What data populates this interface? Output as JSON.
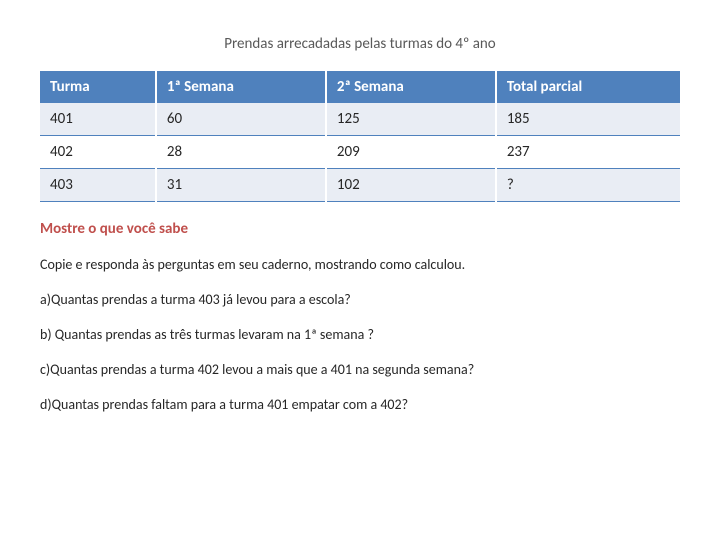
{
  "title": "Prendas arrecadadas pelas turmas do 4º ano",
  "table": {
    "header_bg": "#4f81bd",
    "header_color": "#ffffff",
    "row_alt_bg": "#e9edf4",
    "border_color": "#4f81bd",
    "columns": [
      "Turma",
      "1ª Semana",
      "2ª Semana",
      "Total parcial"
    ],
    "rows": [
      [
        "401",
        "60",
        "125",
        "185"
      ],
      [
        "402",
        "28",
        "209",
        "237"
      ],
      [
        "403",
        "31",
        "102",
        "?"
      ]
    ]
  },
  "subtitle": "Mostre o que você sabe",
  "instruction": "Copie e responda às perguntas  em seu caderno, mostrando como calculou.",
  "questions": [
    "a)Quantas prendas a turma 403 já levou para a escola?",
    "b) Quantas prendas as três turmas levaram na 1ª semana ?",
    "c)Quantas prendas a turma 402 levou a mais que a 401 na segunda semana?",
    "d)Quantas prendas faltam para a turma 401 empatar com a 402?"
  ]
}
